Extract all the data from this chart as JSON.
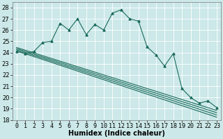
{
  "title": "",
  "xlabel": "Humidex (Indice chaleur)",
  "bg_color": "#cce8e8",
  "grid_color": "#b0d8d8",
  "line_color": "#1a6b5a",
  "xlim": [
    -0.5,
    23.5
  ],
  "ylim": [
    18,
    28.5
  ],
  "yticks": [
    18,
    19,
    20,
    21,
    22,
    23,
    24,
    25,
    26,
    27,
    28
  ],
  "xticks": [
    0,
    1,
    2,
    3,
    4,
    5,
    6,
    7,
    8,
    9,
    10,
    11,
    12,
    13,
    14,
    15,
    16,
    17,
    18,
    19,
    20,
    21,
    22,
    23
  ],
  "main_series": [
    [
      0,
      24.1
    ],
    [
      1,
      23.9
    ],
    [
      2,
      24.1
    ],
    [
      3,
      24.9
    ],
    [
      4,
      25.0
    ],
    [
      5,
      26.6
    ],
    [
      6,
      26.0
    ],
    [
      7,
      27.0
    ],
    [
      8,
      25.6
    ],
    [
      9,
      26.5
    ],
    [
      10,
      26.0
    ],
    [
      11,
      27.5
    ],
    [
      12,
      27.8
    ],
    [
      13,
      27.0
    ],
    [
      14,
      26.8
    ],
    [
      15,
      24.5
    ],
    [
      16,
      23.8
    ],
    [
      17,
      22.8
    ],
    [
      18,
      23.9
    ],
    [
      19,
      20.8
    ],
    [
      20,
      20.0
    ],
    [
      21,
      19.5
    ],
    [
      22,
      19.7
    ],
    [
      23,
      19.1
    ]
  ],
  "trend_lines": [
    [
      [
        0,
        24.15
      ],
      [
        23,
        18.25
      ]
    ],
    [
      [
        0,
        24.25
      ],
      [
        23,
        18.45
      ]
    ],
    [
      [
        0,
        24.35
      ],
      [
        23,
        18.65
      ]
    ],
    [
      [
        0,
        24.45
      ],
      [
        23,
        18.85
      ]
    ]
  ],
  "tick_fontsize": 6,
  "xlabel_fontsize": 7
}
